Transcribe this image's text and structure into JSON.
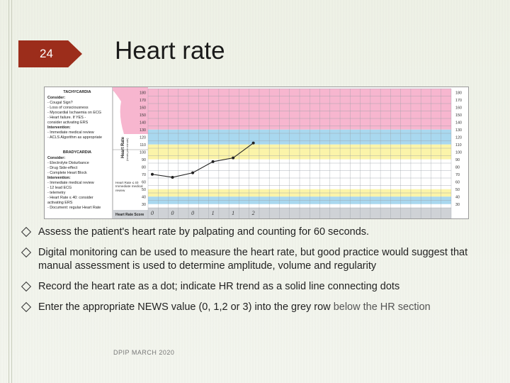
{
  "slide": {
    "number": "24",
    "title": "Heart rate",
    "footer": "DPIP MARCH 2020"
  },
  "chart_panel": {
    "tachy_heading": "TACHYCARDIA",
    "tachy_consider_label": "Consider:",
    "tachy_consider_items": [
      "- Cougal Sign?",
      "- Loss of consciousness",
      "- Myocardial Ischaemia on ECG",
      "- Heart failure. If YES -",
      "  consider activating ERS"
    ],
    "tachy_intervention_label": "Intervention:",
    "tachy_intervention_items": [
      "- Immediate medical review",
      "- ACLS Algorithm as appropriate"
    ],
    "brady_heading": "BRADYCARDIA",
    "brady_consider_label": "Consider:",
    "brady_consider_items": [
      "- Electrolyte Disturbance",
      "- Drug Side-effect",
      "- Complete Heart Block"
    ],
    "brady_intervention_label": "Intervention:",
    "brady_intervention_items": [
      "- Immediate medical review",
      "- 12 lead ECG",
      "- telemetry",
      "- Heart Rate ≤ 40: consider",
      "  activating ERS",
      "- Document: regular Heart Rate"
    ],
    "hr_side_label": "Heart Rate",
    "hr_side_sublabel": "(beats per minute)",
    "hr40_note": "Heart Rate ≤ 40 Immediate medical review",
    "score_row_label": "Heart Rate Score"
  },
  "chart_data": {
    "type": "line",
    "ylabel": "Heart Rate (beats per minute)",
    "y_ticks": [
      180,
      170,
      160,
      150,
      140,
      130,
      120,
      110,
      100,
      90,
      80,
      70,
      60,
      50,
      40,
      30
    ],
    "ylim": [
      25,
      185
    ],
    "bands": [
      {
        "from": 130,
        "to": 185,
        "color": "#f7b6cf"
      },
      {
        "from": 110,
        "to": 130,
        "color": "#a9d8ef"
      },
      {
        "from": 90,
        "to": 110,
        "color": "#fbf4a9"
      },
      {
        "from": 50,
        "to": 90,
        "color": "#ffffff"
      },
      {
        "from": 40,
        "to": 50,
        "color": "#fbf4a9"
      },
      {
        "from": 30,
        "to": 40,
        "color": "#a9d8ef"
      }
    ],
    "series": [
      {
        "x": [
          1,
          2,
          3,
          4,
          5,
          6
        ],
        "values": [
          70,
          66,
          72,
          87,
          92,
          112
        ]
      }
    ],
    "scores": [
      "0",
      "0",
      "0",
      "1",
      "1",
      "2"
    ]
  },
  "bullets": [
    {
      "text": "Assess the patient's heart rate by palpating and counting for 60 seconds."
    },
    {
      "text": "Digital monitoring can be used to measure the heart rate, but good practice would suggest that manual assessment is used to determine amplitude, volume and regularity"
    },
    {
      "text": "Record the heart rate as a dot; indicate HR trend as a solid line connecting dots"
    },
    {
      "text": "Enter the appropriate NEWS value (0, 1,2 or 3) into the grey row ",
      "muted": "below the HR section"
    }
  ]
}
